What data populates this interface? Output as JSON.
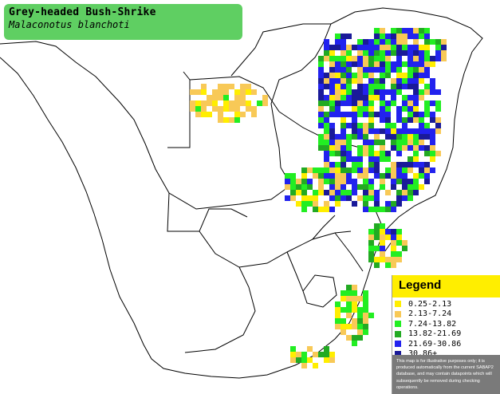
{
  "title": {
    "common_name": "Grey-headed Bush-Shrike",
    "scientific_name": "Malaconotus blanchoti",
    "box_color": "#5fcf62"
  },
  "map": {
    "background": "#ffffff",
    "boundary_color": "#000000",
    "region": "Southern Africa"
  },
  "legend": {
    "heading": "Legend",
    "heading_color": "#ffee00",
    "items": [
      {
        "label": "0.25-2.13",
        "color": "#ffee00"
      },
      {
        "label": "2.13-7.24",
        "color": "#f8c957"
      },
      {
        "label": "7.24-13.82",
        "color": "#22ee22"
      },
      {
        "label": "13.82-21.69",
        "color": "#22aa22"
      },
      {
        "label": "21.69-30.86",
        "color": "#2222ee"
      },
      {
        "label": "30.86+",
        "color": "#1a1a99"
      }
    ],
    "note": "This map is for illustrative purposes only; it is produced automatically from the current SABAP2 database, and may contain datapoints which will subsequently be removed during checking operations."
  }
}
